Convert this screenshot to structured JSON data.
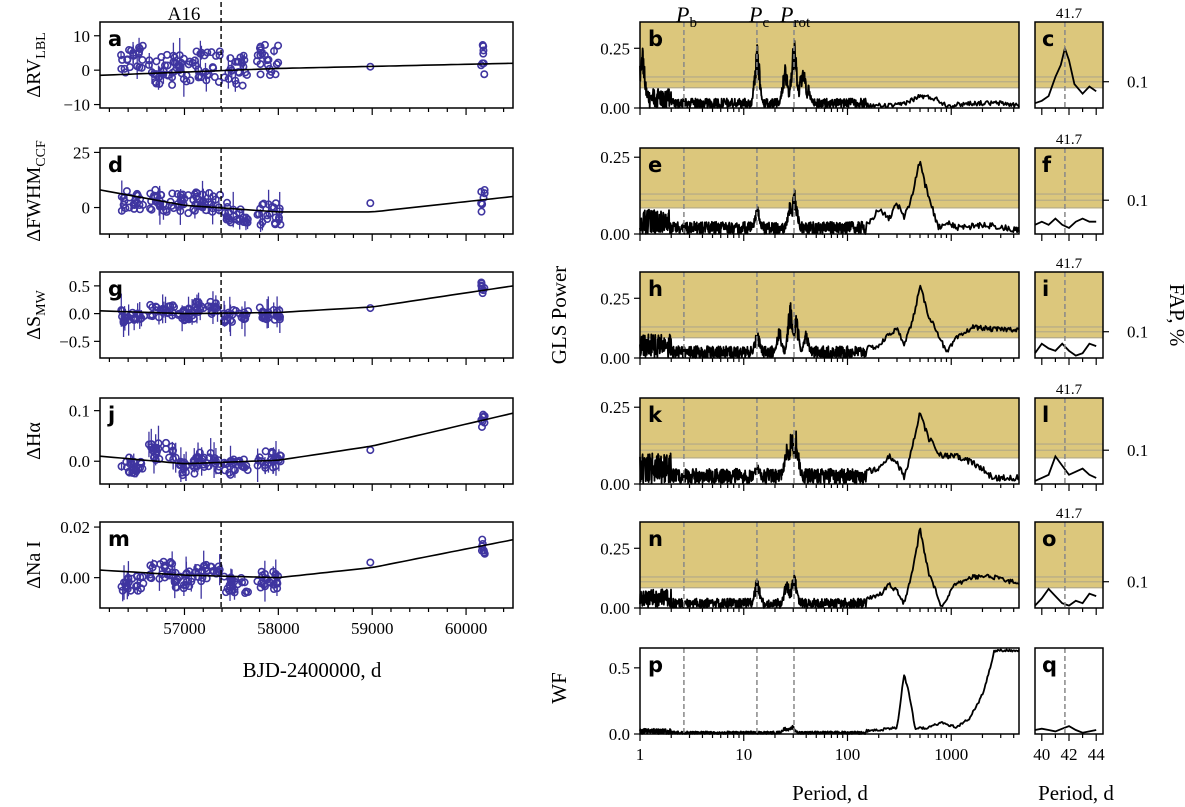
{
  "colors": {
    "points": "#3f35a0",
    "fap_shade": "#dcc77c",
    "fap_lines": "#b8ad86",
    "curve": "#000000",
    "markers": "#888888"
  },
  "labels": {
    "a16": "A16",
    "left_xlabel": "BJD-2400000, d",
    "gls_ylabel": "GLS Power",
    "fap_ylabel": "FAP, %",
    "wf_ylabel": "WF",
    "period_xlabel": "Period, d",
    "period_xlabel_zoom": "Period, d",
    "pb_main": "P",
    "pb_sub": "b",
    "pc_main": "P",
    "pc_sub": "c",
    "prot_main": "P",
    "prot_sub": "rot",
    "zoom_period": "41.7",
    "fap_tick": "0.1"
  },
  "chart_data": [
    {
      "type": "scatter",
      "panel": "a",
      "ylabel_main": "ΔRV",
      "ylabel_sub": "LBL",
      "x_range": [
        56100,
        60500
      ],
      "ylim": [
        -11,
        14
      ],
      "yticks": [
        "10",
        "0",
        "−10"
      ],
      "ytick_values": [
        10,
        0,
        -10
      ],
      "trend": [
        [
          56100,
          -1.5
        ],
        [
          58000,
          0.5
        ],
        [
          60500,
          2.0
        ]
      ],
      "epochs": [
        [
          56450,
          3
        ],
        [
          56750,
          0
        ],
        [
          57000,
          0
        ],
        [
          57250,
          1
        ],
        [
          57550,
          0
        ],
        [
          57900,
          3
        ],
        [
          58980,
          1
        ],
        [
          60180,
          3
        ]
      ],
      "spread": 4.5
    },
    {
      "type": "scatter",
      "panel": "d",
      "ylabel_main": "ΔFWHM",
      "ylabel_sub": "CCF",
      "x_range": [
        56100,
        60500
      ],
      "ylim": [
        -12,
        27
      ],
      "yticks": [
        "25",
        "0"
      ],
      "ytick_values": [
        25,
        0
      ],
      "trend": [
        [
          56100,
          8
        ],
        [
          57000,
          1
        ],
        [
          58000,
          -2
        ],
        [
          59000,
          -2
        ],
        [
          60500,
          5
        ]
      ],
      "epochs": [
        [
          56450,
          3
        ],
        [
          56750,
          3
        ],
        [
          57000,
          2
        ],
        [
          57250,
          3
        ],
        [
          57550,
          -2
        ],
        [
          57900,
          -3
        ],
        [
          58980,
          2
        ],
        [
          60180,
          3
        ]
      ],
      "spread": 5
    },
    {
      "type": "scatter",
      "panel": "g",
      "ylabel_main": "ΔS",
      "ylabel_sub": "MW",
      "x_range": [
        56100,
        60500
      ],
      "ylim": [
        -0.8,
        0.75
      ],
      "yticks": [
        "0.5",
        "0.0",
        "−0.5"
      ],
      "ytick_values": [
        0.5,
        0,
        -0.5
      ],
      "trend": [
        [
          56100,
          0.05
        ],
        [
          57000,
          0.0
        ],
        [
          58000,
          0.02
        ],
        [
          59000,
          0.12
        ],
        [
          60500,
          0.5
        ]
      ],
      "epochs": [
        [
          56450,
          -0.05
        ],
        [
          56750,
          0.05
        ],
        [
          57000,
          0.0
        ],
        [
          57250,
          0.1
        ],
        [
          57550,
          -0.05
        ],
        [
          57900,
          0.0
        ],
        [
          58980,
          0.1
        ],
        [
          60180,
          0.45
        ]
      ],
      "spread": 0.12
    },
    {
      "type": "scatter",
      "panel": "j",
      "ylabel_main": "ΔHα",
      "ylabel_sub": "",
      "x_range": [
        56100,
        60500
      ],
      "ylim": [
        -0.045,
        0.125
      ],
      "yticks": [
        "0.1",
        "0.0"
      ],
      "ytick_values": [
        0.1,
        0.0
      ],
      "trend": [
        [
          56100,
          0.01
        ],
        [
          57000,
          -0.005
        ],
        [
          58000,
          0.002
        ],
        [
          59000,
          0.03
        ],
        [
          60500,
          0.095
        ]
      ],
      "epochs": [
        [
          56450,
          -0.01
        ],
        [
          56750,
          0.02
        ],
        [
          57000,
          -0.01
        ],
        [
          57250,
          0.0
        ],
        [
          57550,
          -0.01
        ],
        [
          57900,
          0.005
        ],
        [
          58980,
          0.022
        ],
        [
          60180,
          0.085
        ]
      ],
      "spread": 0.018
    },
    {
      "type": "scatter",
      "panel": "m",
      "ylabel_main": "ΔNa I",
      "ylabel_sub": "",
      "x_range": [
        56100,
        60500
      ],
      "ylim": [
        -0.012,
        0.022
      ],
      "yticks": [
        "0.02",
        "0.00"
      ],
      "ytick_values": [
        0.02,
        0.0
      ],
      "trend": [
        [
          56100,
          0.003
        ],
        [
          57000,
          0.001
        ],
        [
          58000,
          0.0
        ],
        [
          59000,
          0.004
        ],
        [
          60500,
          0.015
        ]
      ],
      "epochs": [
        [
          56450,
          -0.002
        ],
        [
          56750,
          0.003
        ],
        [
          57000,
          -0.001
        ],
        [
          57250,
          0.002
        ],
        [
          57550,
          -0.003
        ],
        [
          57900,
          -0.001
        ],
        [
          58980,
          0.006
        ],
        [
          60180,
          0.012
        ]
      ],
      "spread": 0.0035
    },
    {
      "type": "line",
      "panel": "b",
      "x_scale": "log",
      "xlim": [
        1,
        4500
      ],
      "ylim": [
        0,
        0.36
      ],
      "yticks": [
        "0.25",
        "0.00"
      ],
      "ytick_values": [
        0.25,
        0
      ],
      "fap_levels": [
        0.085,
        0.11,
        0.13
      ],
      "peaks": [
        [
          1.05,
          0.28
        ],
        [
          13.5,
          0.28
        ],
        [
          25,
          0.2
        ],
        [
          30.5,
          0.33
        ],
        [
          37,
          0.22
        ],
        [
          42,
          0.1
        ]
      ],
      "lowfreq": [
        [
          150,
          0.01
        ],
        [
          300,
          0.01
        ],
        [
          500,
          0.05
        ],
        [
          700,
          0.04
        ],
        [
          900,
          0.01
        ],
        [
          1500,
          0.02
        ],
        [
          3000,
          0.02
        ],
        [
          4500,
          0.01
        ]
      ],
      "noise": 0.04
    },
    {
      "type": "line",
      "panel": "e",
      "x_scale": "log",
      "xlim": [
        1,
        4500
      ],
      "ylim": [
        0,
        0.28
      ],
      "yticks": [
        "0.25",
        "0.00"
      ],
      "ytick_values": [
        0.25,
        0
      ],
      "fap_levels": [
        0.085,
        0.11,
        0.13
      ],
      "peaks": [
        [
          13.5,
          0.1
        ],
        [
          28,
          0.12
        ],
        [
          31,
          0.16
        ]
      ],
      "lowfreq": [
        [
          150,
          0.03
        ],
        [
          200,
          0.08
        ],
        [
          250,
          0.05
        ],
        [
          300,
          0.1
        ],
        [
          350,
          0.05
        ],
        [
          420,
          0.13
        ],
        [
          500,
          0.24
        ],
        [
          550,
          0.17
        ],
        [
          650,
          0.09
        ],
        [
          750,
          0.02
        ],
        [
          900,
          0.04
        ],
        [
          1100,
          0.02
        ],
        [
          2000,
          0.03
        ],
        [
          4500,
          0.01
        ]
      ],
      "noise": 0.04
    },
    {
      "type": "line",
      "panel": "h",
      "x_scale": "log",
      "xlim": [
        1,
        4500
      ],
      "ylim": [
        0,
        0.36
      ],
      "yticks": [
        "0.25",
        "0.00"
      ],
      "ytick_values": [
        0.25,
        0
      ],
      "fap_levels": [
        0.085,
        0.11,
        0.13
      ],
      "peaks": [
        [
          13.5,
          0.13
        ],
        [
          22,
          0.14
        ],
        [
          28,
          0.25
        ],
        [
          32,
          0.2
        ],
        [
          40,
          0.12
        ]
      ],
      "lowfreq": [
        [
          150,
          0.04
        ],
        [
          200,
          0.05
        ],
        [
          250,
          0.1
        ],
        [
          300,
          0.12
        ],
        [
          350,
          0.06
        ],
        [
          420,
          0.15
        ],
        [
          500,
          0.3
        ],
        [
          600,
          0.18
        ],
        [
          750,
          0.1
        ],
        [
          900,
          0.02
        ],
        [
          1100,
          0.08
        ],
        [
          1600,
          0.13
        ],
        [
          2500,
          0.12
        ],
        [
          4500,
          0.12
        ]
      ],
      "noise": 0.05
    },
    {
      "type": "line",
      "panel": "k",
      "x_scale": "log",
      "xlim": [
        1,
        4500
      ],
      "ylim": [
        0,
        0.28
      ],
      "yticks": [
        "0.25",
        "0.00"
      ],
      "ytick_values": [
        0.25,
        0
      ],
      "fap_levels": [
        0.085,
        0.11,
        0.13
      ],
      "peaks": [
        [
          13.5,
          0.08
        ],
        [
          26,
          0.15
        ],
        [
          29,
          0.22
        ],
        [
          32,
          0.18
        ]
      ],
      "lowfreq": [
        [
          150,
          0.04
        ],
        [
          200,
          0.05
        ],
        [
          250,
          0.09
        ],
        [
          300,
          0.07
        ],
        [
          350,
          0.02
        ],
        [
          420,
          0.12
        ],
        [
          500,
          0.23
        ],
        [
          600,
          0.15
        ],
        [
          800,
          0.09
        ],
        [
          1100,
          0.09
        ],
        [
          1600,
          0.07
        ],
        [
          2500,
          0.02
        ],
        [
          4500,
          0.02
        ]
      ],
      "noise": 0.05
    },
    {
      "type": "line",
      "panel": "n",
      "x_scale": "log",
      "xlim": [
        1,
        4500
      ],
      "ylim": [
        0,
        0.36
      ],
      "yticks": [
        "0.25",
        "0.00"
      ],
      "ytick_values": [
        0.25,
        0
      ],
      "fap_levels": [
        0.085,
        0.11,
        0.13
      ],
      "peaks": [
        [
          13.5,
          0.14
        ],
        [
          26,
          0.14
        ],
        [
          30.5,
          0.17
        ]
      ],
      "lowfreq": [
        [
          150,
          0.04
        ],
        [
          200,
          0.05
        ],
        [
          250,
          0.1
        ],
        [
          300,
          0.07
        ],
        [
          350,
          0.02
        ],
        [
          420,
          0.15
        ],
        [
          500,
          0.33
        ],
        [
          600,
          0.15
        ],
        [
          800,
          0.01
        ],
        [
          1100,
          0.1
        ],
        [
          1600,
          0.13
        ],
        [
          2500,
          0.13
        ],
        [
          4500,
          0.1
        ]
      ],
      "noise": 0.04
    },
    {
      "type": "line",
      "panel": "p",
      "x_scale": "log",
      "xlim": [
        1,
        4500
      ],
      "ylim": [
        0,
        0.65
      ],
      "yticks": [
        "0.5",
        "0.0"
      ],
      "ytick_values": [
        0.5,
        0
      ],
      "fap_levels": [],
      "peaks": [
        [
          25,
          0.06
        ],
        [
          29,
          0.08
        ]
      ],
      "lowfreq": [
        [
          100,
          0.02
        ],
        [
          200,
          0.03
        ],
        [
          300,
          0.05
        ],
        [
          350,
          0.45
        ],
        [
          380,
          0.35
        ],
        [
          450,
          0.04
        ],
        [
          600,
          0.05
        ],
        [
          800,
          0.09
        ],
        [
          1100,
          0.05
        ],
        [
          1500,
          0.12
        ],
        [
          2000,
          0.3
        ],
        [
          2600,
          0.63
        ]
      ],
      "noise": 0.02
    }
  ],
  "panels": {
    "rv": [
      "a",
      "d",
      "g",
      "j",
      "m"
    ],
    "gls": [
      "b",
      "e",
      "h",
      "k",
      "n",
      "p"
    ],
    "zoom": [
      "c",
      "f",
      "i",
      "l",
      "o",
      "q"
    ]
  },
  "axes": {
    "bjd_ticks": [
      "57000",
      "58000",
      "59000",
      "60000"
    ],
    "period_ticks": [
      "1",
      "10",
      "100",
      "1000"
    ],
    "zoom_ticks": [
      "40",
      "42",
      "44"
    ]
  },
  "zoom_curves": [
    [
      [
        39.5,
        0.02
      ],
      [
        40,
        0.03
      ],
      [
        40.5,
        0.05
      ],
      [
        41,
        0.13
      ],
      [
        41.4,
        0.18
      ],
      [
        41.7,
        0.25
      ],
      [
        42,
        0.2
      ],
      [
        42.4,
        0.1
      ],
      [
        43,
        0.06
      ],
      [
        43.5,
        0.09
      ],
      [
        44,
        0.07
      ]
    ],
    [
      [
        39.5,
        0.03
      ],
      [
        40,
        0.04
      ],
      [
        40.5,
        0.03
      ],
      [
        41,
        0.05
      ],
      [
        41.5,
        0.03
      ],
      [
        42,
        0.02
      ],
      [
        42.5,
        0.04
      ],
      [
        43,
        0.05
      ],
      [
        43.5,
        0.04
      ],
      [
        44,
        0.04
      ]
    ],
    [
      [
        39.5,
        0.02
      ],
      [
        40,
        0.06
      ],
      [
        40.5,
        0.04
      ],
      [
        41,
        0.03
      ],
      [
        41.5,
        0.06
      ],
      [
        42,
        0.03
      ],
      [
        42.5,
        0.01
      ],
      [
        43,
        0.02
      ],
      [
        43.5,
        0.06
      ],
      [
        44,
        0.05
      ]
    ],
    [
      [
        39.5,
        0.01
      ],
      [
        40,
        0.02
      ],
      [
        40.5,
        0.03
      ],
      [
        41,
        0.09
      ],
      [
        41.5,
        0.06
      ],
      [
        42,
        0.03
      ],
      [
        42.5,
        0.04
      ],
      [
        43,
        0.05
      ],
      [
        43.5,
        0.03
      ],
      [
        44,
        0.02
      ]
    ],
    [
      [
        39.5,
        0.01
      ],
      [
        40,
        0.04
      ],
      [
        40.5,
        0.08
      ],
      [
        41,
        0.05
      ],
      [
        41.5,
        0.02
      ],
      [
        42,
        0.01
      ],
      [
        42.5,
        0.03
      ],
      [
        43,
        0.02
      ],
      [
        43.5,
        0.06
      ],
      [
        44,
        0.05
      ]
    ],
    [
      [
        39.5,
        0.03
      ],
      [
        40,
        0.04
      ],
      [
        40.5,
        0.03
      ],
      [
        41,
        0.02
      ],
      [
        41.5,
        0.04
      ],
      [
        42,
        0.06
      ],
      [
        42.5,
        0.03
      ],
      [
        43,
        0.01
      ],
      [
        43.5,
        0.02
      ],
      [
        44,
        0.03
      ]
    ]
  ]
}
